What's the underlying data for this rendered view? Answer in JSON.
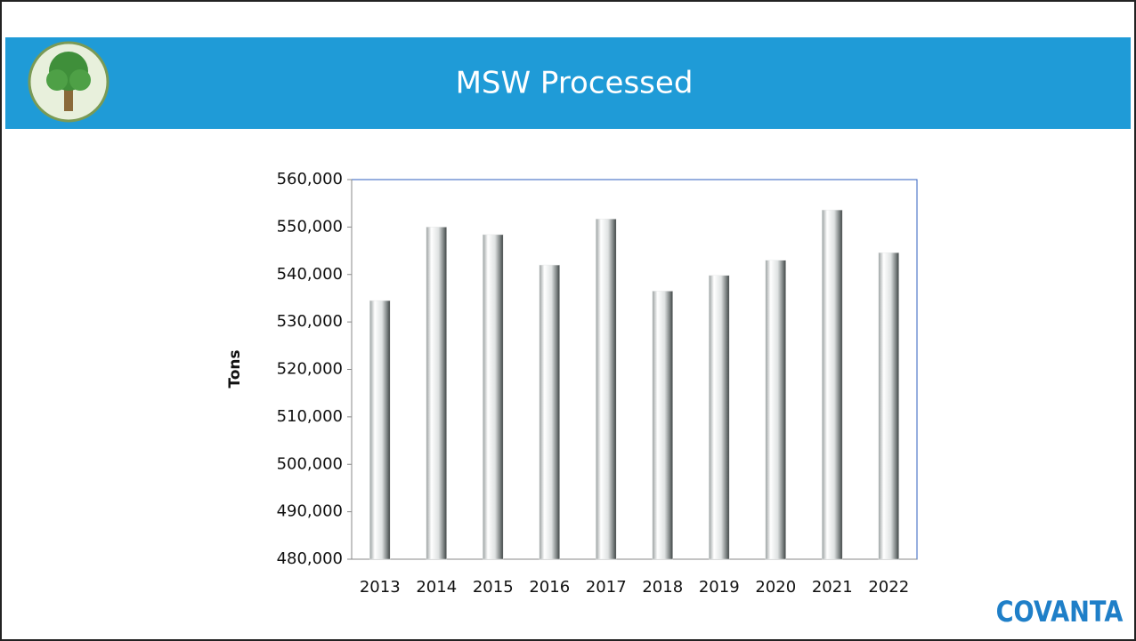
{
  "chart_data": {
    "type": "bar",
    "title": "MSW Processed",
    "y_label": "Tons",
    "categories": [
      "2013",
      "2014",
      "2015",
      "2016",
      "2017",
      "2018",
      "2019",
      "2020",
      "2021",
      "2022"
    ],
    "values": [
      534500,
      550000,
      548400,
      542000,
      551700,
      536500,
      539800,
      543000,
      553600,
      544600
    ],
    "color": "#e6e8e8",
    "ylim": [
      480000,
      560000
    ],
    "yticks": [
      {
        "value": 480000,
        "label": "480,000"
      },
      {
        "value": 490000,
        "label": "490,000"
      },
      {
        "value": 500000,
        "label": "500,000"
      },
      {
        "value": 510000,
        "label": "510,000"
      },
      {
        "value": 520000,
        "label": "520,000"
      },
      {
        "value": 530000,
        "label": "530,000"
      },
      {
        "value": 540000,
        "label": "540,000"
      },
      {
        "value": 550000,
        "label": "550,000"
      },
      {
        "value": 560000,
        "label": "560,000"
      }
    ],
    "grid": false
  },
  "brand": "COVANTA"
}
